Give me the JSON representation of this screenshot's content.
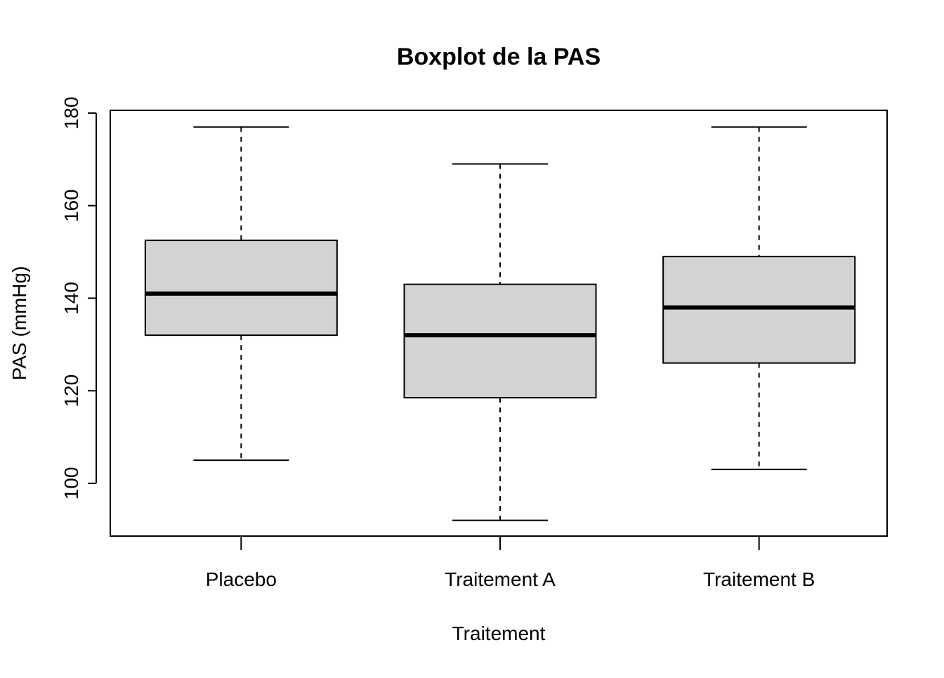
{
  "chart_data": {
    "type": "boxplot",
    "title": "Boxplot de la PAS",
    "xlabel": "Traitement",
    "ylabel": "PAS (mmHg)",
    "categories": [
      "Placebo",
      "Traitement A",
      "Traitement B"
    ],
    "boxes": [
      {
        "name": "Placebo",
        "whisker_low": 105,
        "q1": 132,
        "median": 141,
        "q3": 152.5,
        "whisker_high": 177
      },
      {
        "name": "Traitement A",
        "whisker_low": 92,
        "q1": 118.5,
        "median": 132,
        "q3": 143,
        "whisker_high": 169
      },
      {
        "name": "Traitement B",
        "whisker_low": 103,
        "q1": 126,
        "median": 138,
        "q3": 149,
        "whisker_high": 177
      }
    ],
    "yticks": [
      100,
      120,
      140,
      160,
      180
    ],
    "ylim": [
      88.6,
      180.6
    ],
    "grid": false,
    "box_fill": "#d3d3d3",
    "line_color": "#000000"
  }
}
